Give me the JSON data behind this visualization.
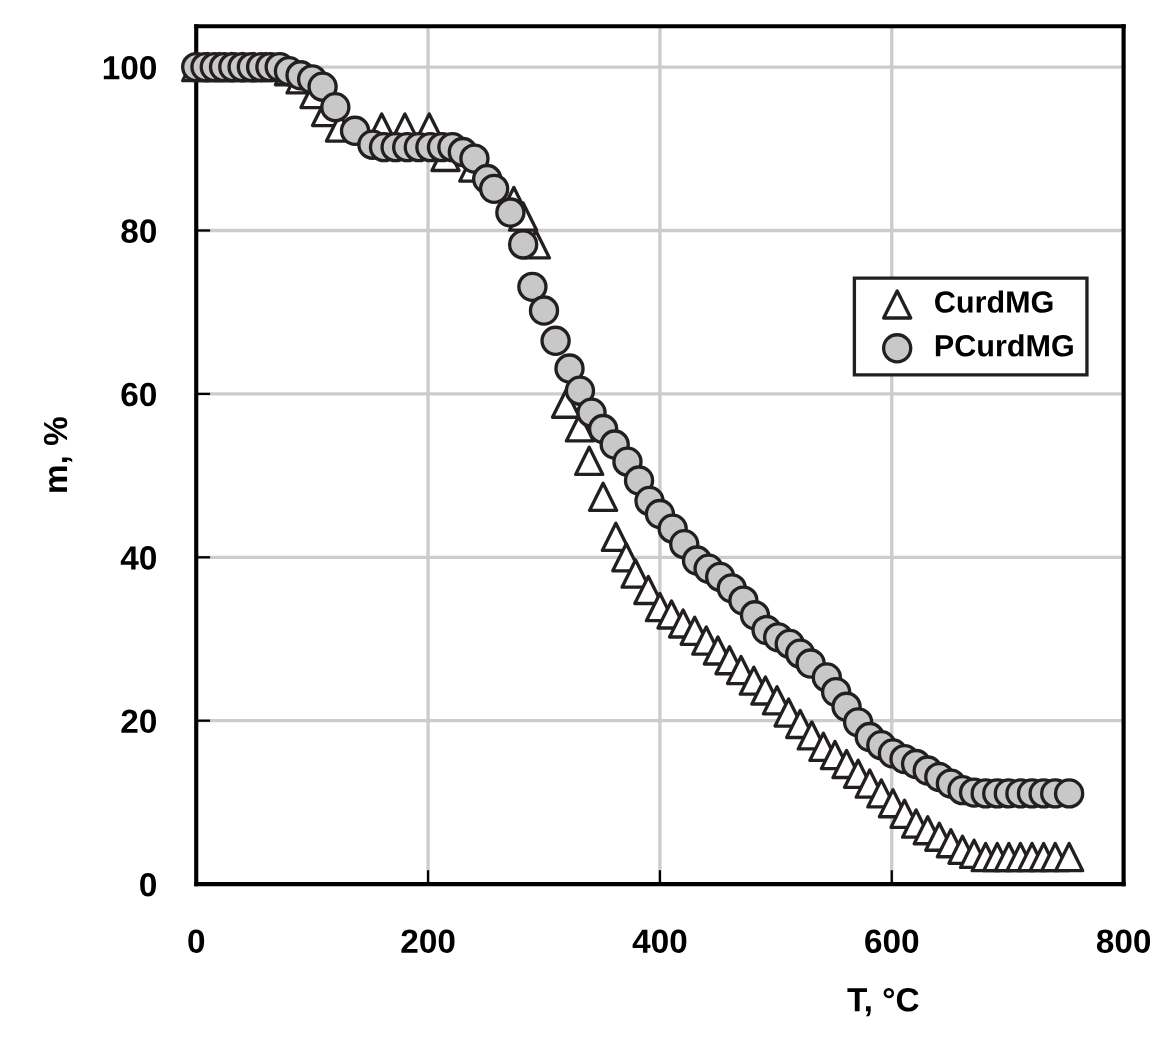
{
  "chart_data": {
    "type": "scatter",
    "xlabel": "T, °C",
    "ylabel": "m, %",
    "xlim": [
      0,
      800
    ],
    "xticks": [
      0,
      200,
      400,
      600,
      800
    ],
    "ylim": [
      0,
      105
    ],
    "yticks": [
      0,
      20,
      40,
      60,
      80,
      100
    ],
    "grid": true,
    "legend": "right",
    "series": [
      {
        "name": "CurdMG",
        "color": "#ffffff",
        "marker": "triangle",
        "x": [
          0,
          10,
          20,
          30,
          40,
          50,
          60,
          70,
          80,
          90,
          102,
          112,
          124,
          140,
          160,
          180,
          201,
          215,
          239,
          256,
          274,
          282,
          293,
          319,
          331,
          339,
          351,
          362,
          371,
          379,
          390,
          400,
          410,
          420,
          430,
          440,
          450,
          460,
          470,
          481,
          491,
          501,
          511,
          521,
          531,
          541,
          551,
          561,
          571,
          581,
          591,
          601,
          611,
          621,
          631,
          641,
          651,
          661,
          671,
          681,
          691,
          701,
          711,
          721,
          731,
          741,
          753
        ],
        "values": [
          100,
          100,
          100,
          100,
          100,
          100,
          100,
          null,
          99.5,
          98.5,
          96.7,
          94.5,
          92.6,
          null,
          92.6,
          92.6,
          92.6,
          89,
          87.7,
          null,
          83.6,
          81.7,
          78.3,
          58.8,
          55.9,
          51.8,
          47.4,
          42.5,
          40,
          38,
          36,
          33.9,
          33,
          31.9,
          31,
          29.8,
          28.6,
          27.4,
          26.2,
          24.9,
          23.7,
          22.5,
          21,
          19.6,
          18.2,
          16.8,
          15.8,
          14.7,
          13.5,
          12.3,
          11.1,
          9.9,
          8.6,
          7.4,
          6.6,
          5.8,
          5,
          4.2,
          3.7,
          3.3,
          3.3,
          3.3,
          3.3,
          3.3,
          3.3,
          3.3,
          3.3
        ]
      },
      {
        "name": "PCurdMG",
        "color": "#c8c8c8",
        "marker": "circle",
        "x": [
          0,
          8,
          16,
          24,
          32,
          40,
          48,
          56,
          64,
          72,
          80,
          90,
          100,
          109,
          120,
          137,
          152,
          162,
          172,
          182,
          192,
          202,
          212,
          221,
          230,
          240,
          251,
          257,
          271,
          282,
          290,
          300,
          310,
          322,
          331,
          341,
          351,
          361,
          372,
          382,
          391,
          400,
          411,
          421,
          432,
          442,
          452,
          462,
          472,
          482,
          492,
          502,
          512,
          521,
          530,
          544,
          552,
          561,
          571,
          581,
          591,
          601,
          611,
          621,
          631,
          641,
          651,
          661,
          671,
          681,
          691,
          701,
          711,
          721,
          731,
          741,
          753
        ],
        "values": [
          100,
          100,
          100,
          100,
          100,
          100,
          100,
          100,
          100,
          100,
          99.5,
          99,
          98.5,
          97.6,
          95.1,
          92.2,
          90.5,
          90.2,
          90.2,
          90.2,
          90.2,
          90.2,
          90.2,
          90.2,
          89.6,
          88.8,
          86.3,
          85.1,
          82.2,
          78.3,
          73.1,
          70.2,
          66.5,
          63.1,
          60.4,
          57.7,
          55.7,
          53.8,
          51.7,
          49.4,
          46.9,
          45.3,
          43.5,
          41.6,
          39.6,
          38.6,
          37.6,
          36.2,
          34.7,
          32.9,
          31.1,
          30.2,
          29.4,
          28.2,
          27,
          25.3,
          23.5,
          21.7,
          19.8,
          18,
          17,
          16,
          15.3,
          14.7,
          13.9,
          13.1,
          12.3,
          11.5,
          11.2,
          11.1,
          11.1,
          11.1,
          11.1,
          11.1,
          11.1,
          11.1,
          11.1
        ]
      }
    ]
  }
}
